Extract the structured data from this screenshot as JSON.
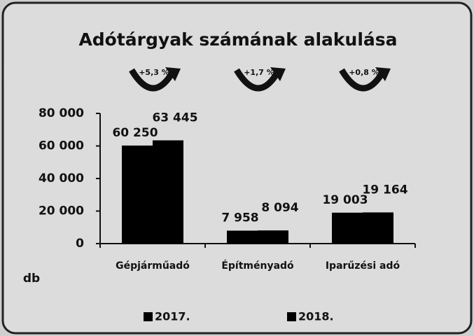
{
  "chart_data": {
    "type": "bar",
    "title": "Adótárgyak számának alakulása",
    "y_label": "db",
    "categories": [
      "Gépjárműadó",
      "Építményadó",
      "Iparűzési adó"
    ],
    "series": [
      {
        "name": "2017.",
        "color": "#000000",
        "values": [
          60250,
          7958,
          19003
        ],
        "value_labels": [
          "60 250",
          "7 958",
          "19 003"
        ]
      },
      {
        "name": "2018.",
        "color": "#000000",
        "values": [
          63445,
          8094,
          19164
        ],
        "value_labels": [
          "63 445",
          "8 094",
          "19 164"
        ]
      }
    ],
    "annotations": [
      "+5,3 %",
      "+1,7 %",
      "+0,8 %"
    ],
    "ylim": [
      0,
      80000
    ],
    "yticks": [
      0,
      {
        "value": 20000,
        "label": "20 000"
      },
      {
        "value": 40000,
        "label": "40 000"
      },
      {
        "value": 60000,
        "label": "60 000"
      },
      {
        "value": 80000,
        "label": "80 000"
      }
    ],
    "grid": false,
    "legend": "bottom"
  }
}
